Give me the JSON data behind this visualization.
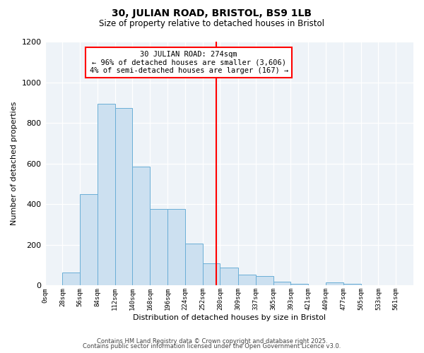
{
  "title": "30, JULIAN ROAD, BRISTOL, BS9 1LB",
  "subtitle": "Size of property relative to detached houses in Bristol",
  "xlabel": "Distribution of detached houses by size in Bristol",
  "ylabel": "Number of detached properties",
  "bar_values": [
    0,
    65,
    450,
    893,
    873,
    585,
    378,
    378,
    205,
    110,
    88,
    55,
    48,
    20,
    10,
    0,
    15,
    10,
    0,
    0,
    0
  ],
  "bin_edges": [
    0,
    28,
    56,
    84,
    112,
    140,
    168,
    196,
    224,
    252,
    280,
    309,
    337,
    365,
    393,
    421,
    449,
    477,
    505,
    533,
    561
  ],
  "bin_labels": [
    "0sqm",
    "28sqm",
    "56sqm",
    "84sqm",
    "112sqm",
    "140sqm",
    "168sqm",
    "196sqm",
    "224sqm",
    "252sqm",
    "280sqm",
    "309sqm",
    "337sqm",
    "365sqm",
    "393sqm",
    "421sqm",
    "449sqm",
    "477sqm",
    "505sqm",
    "533sqm",
    "561sqm"
  ],
  "bar_color": "#cce0f0",
  "bar_edgecolor": "#6aaed6",
  "property_value": 274,
  "vline_color": "red",
  "annotation_text": "30 JULIAN ROAD: 274sqm\n← 96% of detached houses are smaller (3,606)\n4% of semi-detached houses are larger (167) →",
  "annotation_box_edgecolor": "red",
  "ylim": [
    0,
    1200
  ],
  "yticks": [
    0,
    200,
    400,
    600,
    800,
    1000,
    1200
  ],
  "footer_line1": "Contains HM Land Registry data © Crown copyright and database right 2025.",
  "footer_line2": "Contains public sector information licensed under the Open Government Licence v3.0.",
  "bg_color": "#ffffff",
  "plot_bg_color": "#eef3f8"
}
